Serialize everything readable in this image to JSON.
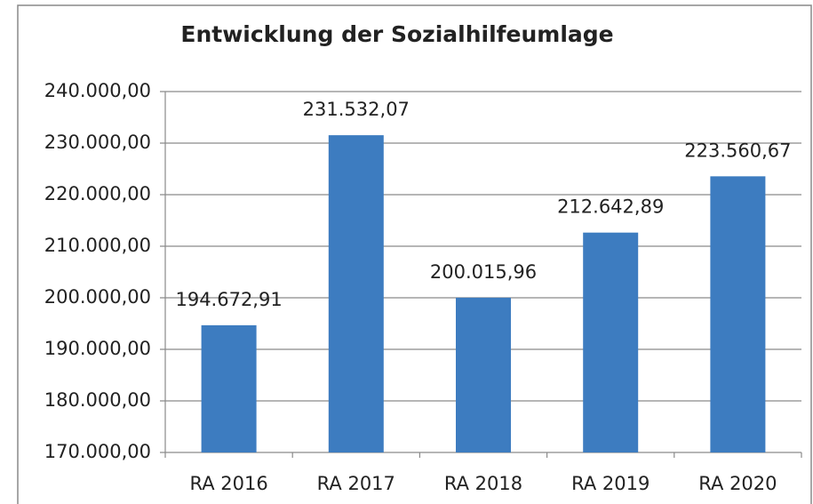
{
  "chart_data": {
    "type": "bar",
    "title": "Entwicklung der Sozialhilfeumlage",
    "categories": [
      "RA 2016",
      "RA 2017",
      "RA 2018",
      "RA 2019",
      "RA 2020"
    ],
    "values": [
      194672.91,
      231532.07,
      200015.96,
      212642.89,
      223560.67
    ],
    "value_labels": [
      "194.672,91",
      "231.532,07",
      "200.015,96",
      "212.642,89",
      "223.560,67"
    ],
    "color": "#3d7cc0",
    "ylim": [
      170000,
      240000
    ],
    "yticks": [
      {
        "value": 170000,
        "label": "170.000,00"
      },
      {
        "value": 180000,
        "label": "180.000,00"
      },
      {
        "value": 190000,
        "label": "190.000,00"
      },
      {
        "value": 200000,
        "label": "200.000,00"
      },
      {
        "value": 210000,
        "label": "210.000,00"
      },
      {
        "value": 220000,
        "label": "220.000,00"
      },
      {
        "value": 230000,
        "label": "230.000,00"
      },
      {
        "value": 240000,
        "label": "240.000,00"
      }
    ],
    "grid": true
  }
}
